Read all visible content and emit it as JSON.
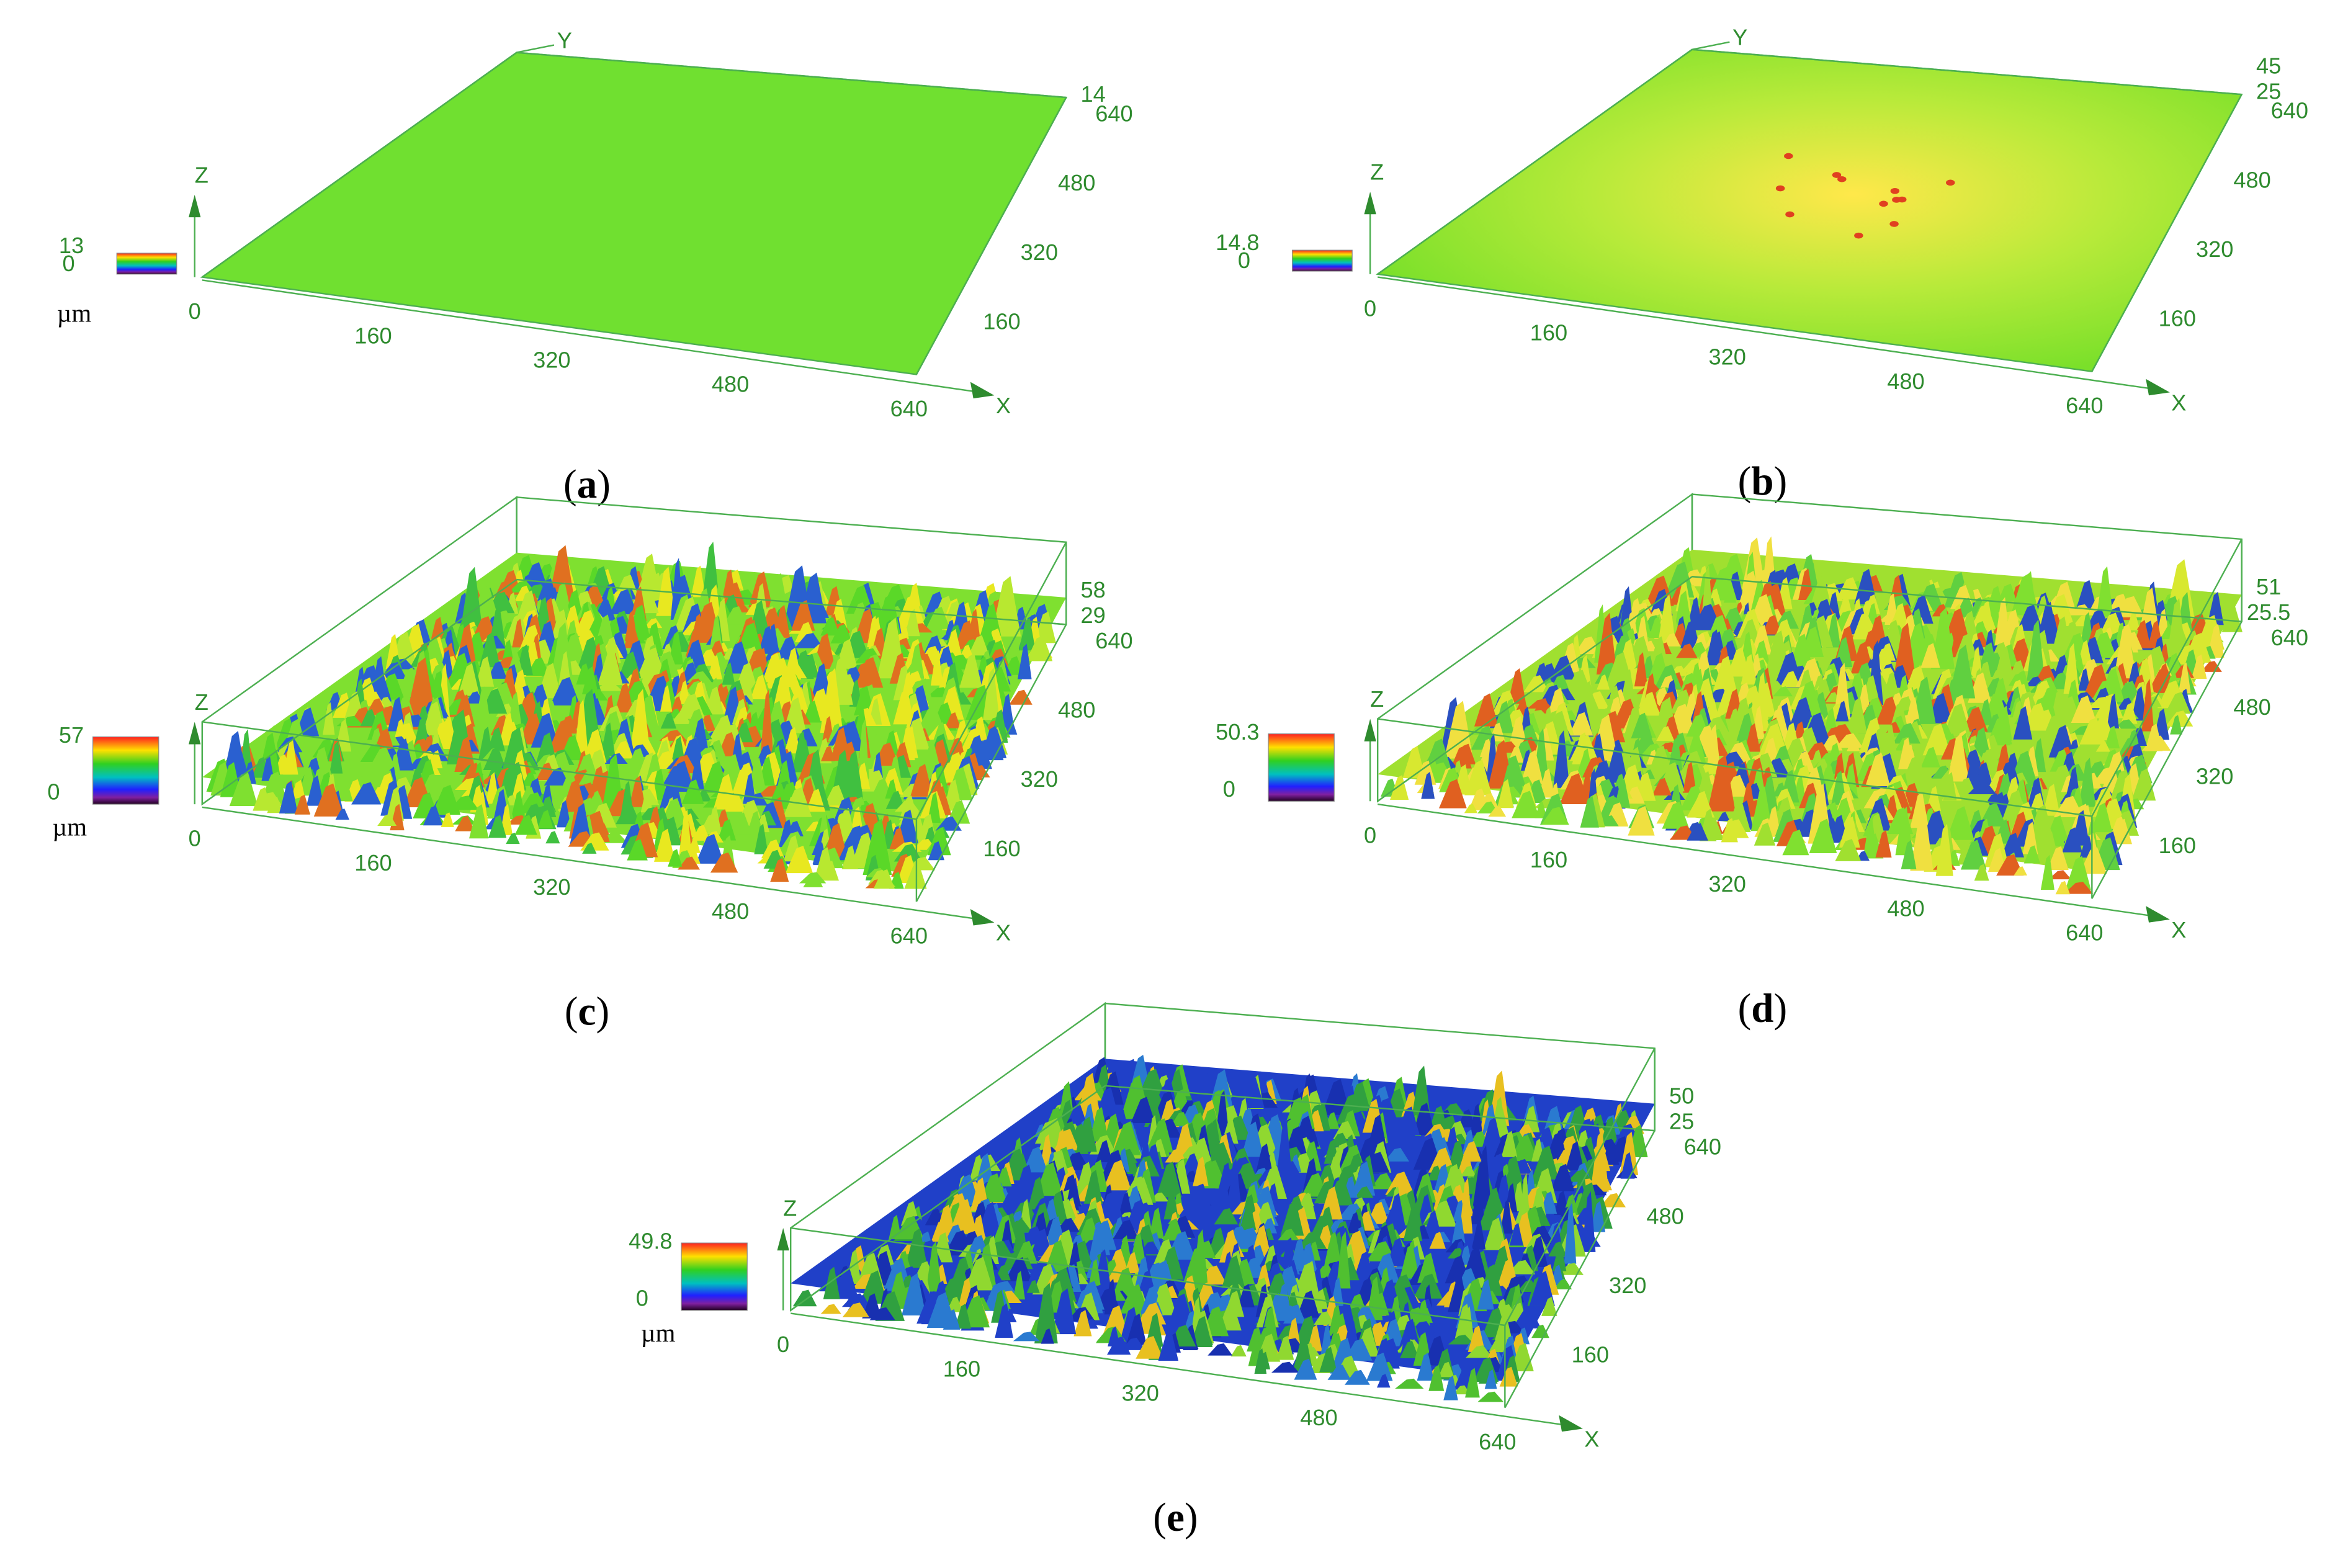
{
  "panels": [
    {
      "caption": "(a)",
      "scale_labels": [
        13,
        0
      ],
      "unit": "µm",
      "axis_names": {
        "x": "X",
        "y": "Y",
        "z": "Z"
      },
      "x_ticks": [
        0,
        160,
        320,
        480,
        640
      ],
      "y_ticks": [
        160,
        320,
        480,
        640
      ],
      "z_ticks": [
        14
      ]
    },
    {
      "caption": "(b)",
      "scale_labels": [
        14.8,
        0
      ],
      "axis_names": {
        "x": "X",
        "y": "Y",
        "z": "Z"
      },
      "x_ticks": [
        0,
        160,
        320,
        480,
        640
      ],
      "y_ticks": [
        160,
        320,
        480,
        640
      ],
      "z_ticks": [
        45,
        25
      ]
    },
    {
      "caption": "(c)",
      "scale_labels": [
        57,
        0
      ],
      "unit": "µm",
      "axis_names": {
        "x": "X",
        "z": "Z"
      },
      "x_ticks": [
        0,
        160,
        320,
        480,
        640
      ],
      "y_ticks": [
        160,
        320,
        480,
        640
      ],
      "z_ticks": [
        58,
        29
      ]
    },
    {
      "caption": "(d)",
      "scale_labels": [
        50.3,
        0
      ],
      "axis_names": {
        "x": "X",
        "z": "Z"
      },
      "x_ticks": [
        0,
        160,
        320,
        480,
        640
      ],
      "y_ticks": [
        160,
        320,
        480,
        640
      ],
      "z_ticks": [
        51,
        25.5
      ]
    },
    {
      "caption": "(e)",
      "scale_labels": [
        49.8,
        0
      ],
      "unit": "µm",
      "axis_names": {
        "x": "X",
        "z": "Z"
      },
      "x_ticks": [
        0,
        160,
        320,
        480,
        640
      ],
      "y_ticks": [
        160,
        320,
        480,
        640
      ],
      "z_ticks": [
        50,
        25
      ]
    }
  ]
}
